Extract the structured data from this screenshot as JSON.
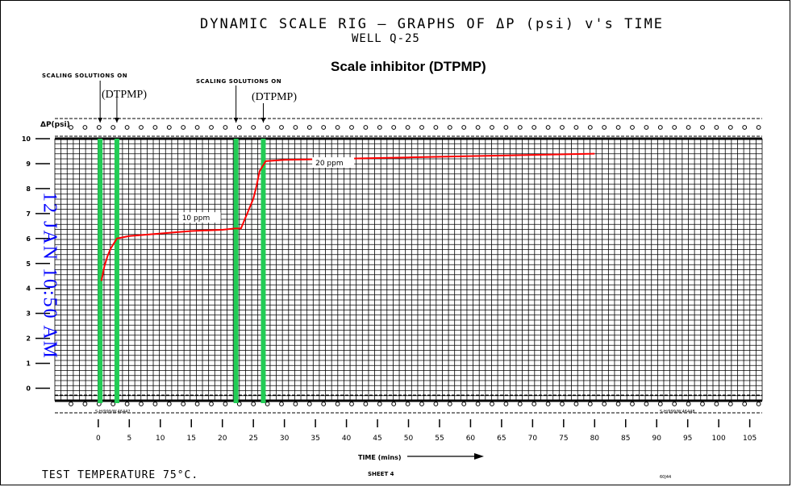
{
  "title": "DYNAMIC SCALE RIG  —  GRAPHS OF  ΔP (psi) v's TIME",
  "subtitle": "WELL Q-25",
  "inhibitor_title": "Scale inhibitor (DTPMP)",
  "annotations": {
    "scaling_on_1": "SCALING SOLUTIONS ON",
    "scaling_on_2": "SCALING SOLUTIONS ON",
    "dtpmp_1": "(DTPMP)",
    "dtpmp_2": "(DTPMP)",
    "ppm_1": "10 ppm",
    "ppm_2": "20 ppm"
  },
  "rotated_label": "12 JAN 10:50 AM",
  "footer": {
    "test_temperature": "TEST TEMPERATURE 75°C.",
    "sheet": "SHEET 4",
    "code": "60J44",
    "serial_left": "S-H/999/W.46442",
    "serial_right": "S-H/999/W.46448"
  },
  "colors": {
    "curve": "#ff0000",
    "markers": "#22cc55",
    "grid": "#000000",
    "rotated_text": "#0000ff"
  },
  "chart_data": {
    "type": "line",
    "title": "DYNAMIC SCALE RIG — GRAPHS OF ΔP (psi) v's TIME",
    "xlabel": "TIME (mins)",
    "ylabel": "ΔP(psi)",
    "xlim": [
      -7,
      107
    ],
    "ylim": [
      -0.5,
      10
    ],
    "x_ticks": [
      0,
      5,
      10,
      15,
      20,
      25,
      30,
      35,
      40,
      45,
      50,
      55,
      60,
      65,
      70,
      75,
      80,
      85,
      90,
      95,
      100,
      105
    ],
    "y_ticks": [
      0,
      1,
      2,
      3,
      4,
      5,
      6,
      7,
      8,
      9,
      10
    ],
    "grid": true,
    "series": [
      {
        "x": [
          0.5,
          1.0,
          1.5,
          2.0,
          2.5,
          3.0,
          5,
          10,
          15,
          20,
          22,
          23,
          24,
          25,
          25.5,
          26,
          27,
          30,
          40,
          50,
          60,
          70,
          80
        ],
        "y": [
          4.3,
          4.9,
          5.3,
          5.6,
          5.8,
          6.0,
          6.1,
          6.2,
          6.3,
          6.35,
          6.4,
          6.4,
          7.0,
          7.6,
          8.1,
          8.7,
          9.1,
          9.15,
          9.2,
          9.25,
          9.3,
          9.35,
          9.4
        ]
      }
    ],
    "vertical_markers": [
      0.3,
      3.0,
      22.2,
      26.6
    ],
    "annotations": [
      {
        "text": "10 ppm",
        "x": 13.5,
        "y": 6.7
      },
      {
        "text": "20 ppm",
        "x": 35.0,
        "y": 8.9
      }
    ]
  }
}
